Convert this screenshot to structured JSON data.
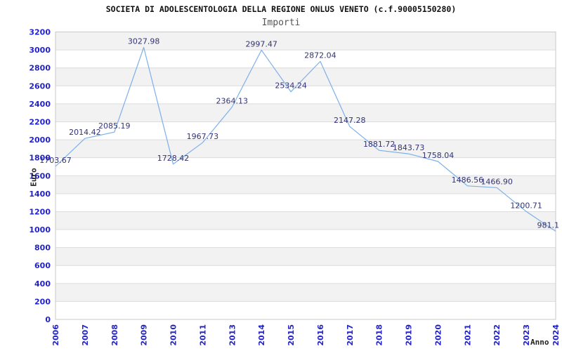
{
  "header": {
    "title": "SOCIETA DI ADOLESCENTOLOGIA DELLA REGIONE ONLUS VENETO (c.f.90005150280)",
    "subtitle": "Importi"
  },
  "chart_data": {
    "type": "line",
    "title": "SOCIETA DI ADOLESCENTOLOGIA DELLA REGIONE ONLUS VENETO (c.f.90005150280)",
    "subtitle": "Importi",
    "xlabel": "Anno",
    "ylabel": "Euro",
    "categories": [
      "2006",
      "2007",
      "2008",
      "2009",
      "2010",
      "2011",
      "2013",
      "2014",
      "2015",
      "2016",
      "2017",
      "2018",
      "2019",
      "2020",
      "2021",
      "2022",
      "2023",
      "2024"
    ],
    "values": [
      1703.67,
      2014.42,
      2085.19,
      3027.98,
      1728.42,
      1967.73,
      2364.13,
      2997.47,
      2534.24,
      2872.04,
      2147.28,
      1881.72,
      1843.73,
      1758.04,
      1486.56,
      1466.9,
      1200.71,
      981.1
    ],
    "point_labels": [
      "1703.67",
      "2014.42",
      "2085.19",
      "3027.98",
      "1728.42",
      "1967.73",
      "2364.13",
      "2997.47",
      "2534.24",
      "2872.04",
      "2147.28",
      "1881.72",
      "1843.73",
      "1758.04",
      "1486.56",
      "1466.90",
      "1200.71",
      "981.1"
    ],
    "ylim": [
      0,
      3200
    ],
    "y_ticks": [
      0,
      200,
      400,
      600,
      800,
      1000,
      1200,
      1400,
      1600,
      1800,
      2000,
      2200,
      2400,
      2600,
      2800,
      3000,
      3200
    ],
    "grid": "horizontal-bands",
    "legend_position": "none",
    "colors": {
      "line": "#7cb0e8",
      "tick_labels": "#2222cc",
      "point_labels": "#333377",
      "band_light": "#ffffff",
      "band_dark": "#f2f2f2",
      "gridline": "#dcdcdc",
      "plot_border": "#c8c8c8"
    }
  }
}
